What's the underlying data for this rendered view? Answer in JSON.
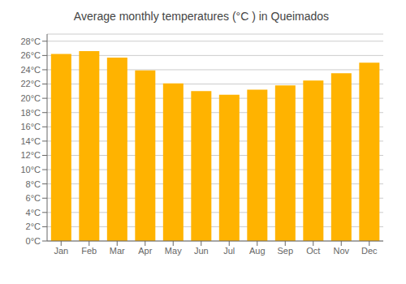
{
  "chart_data": {
    "type": "bar",
    "title": "Average monthly temperatures (°C ) in Queimados",
    "categories": [
      "Jan",
      "Feb",
      "Mar",
      "Apr",
      "May",
      "Jun",
      "Jul",
      "Aug",
      "Sep",
      "Oct",
      "Nov",
      "Dec"
    ],
    "values": [
      26.2,
      26.6,
      25.7,
      23.9,
      22.1,
      21.0,
      20.5,
      21.2,
      21.8,
      22.5,
      23.5,
      25.0
    ],
    "color": "#FFB300",
    "ylim": [
      0,
      29
    ],
    "yticks": [
      {
        "value": 0,
        "label": "0°C"
      },
      {
        "value": 2,
        "label": "2°C"
      },
      {
        "value": 4,
        "label": "4°C"
      },
      {
        "value": 6,
        "label": "6°C"
      },
      {
        "value": 8,
        "label": "8°C"
      },
      {
        "value": 10,
        "label": "10°C"
      },
      {
        "value": 12,
        "label": "12°C"
      },
      {
        "value": 14,
        "label": "14°C"
      },
      {
        "value": 16,
        "label": "16°C"
      },
      {
        "value": 18,
        "label": "18°C"
      },
      {
        "value": 20,
        "label": "20°C"
      },
      {
        "value": 22,
        "label": "22°C"
      },
      {
        "value": 24,
        "label": "24°C"
      },
      {
        "value": 26,
        "label": "26°C"
      },
      {
        "value": 28,
        "label": "28°C"
      }
    ],
    "grid": true
  }
}
